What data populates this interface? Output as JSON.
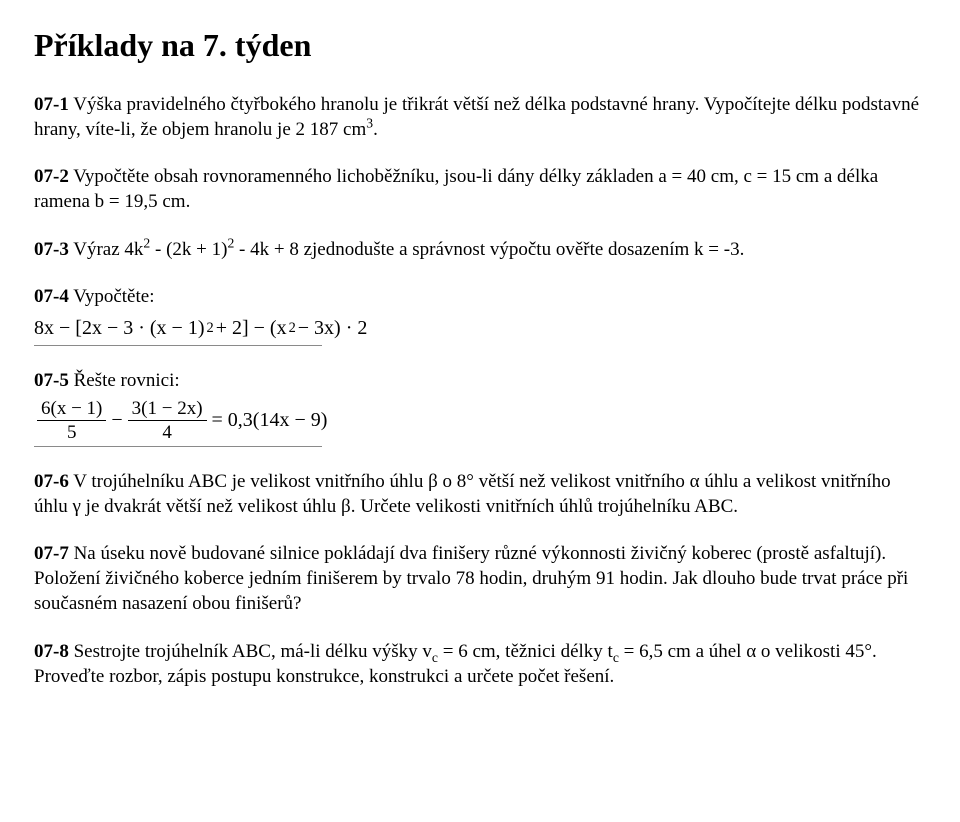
{
  "title": "Příklady na 7. týden",
  "problems": {
    "p1": {
      "label": "07-1",
      "text_before_sup": "  Výška pravidelného čtyřbokého hranolu je třikrát větší než délka podstavné hrany. Vypočítejte délku podstavné hrany, víte-li, že objem hranolu je 2 187 cm",
      "sup": "3",
      "text_after_sup": "."
    },
    "p2": {
      "label": "07-2",
      "text": "  Vypočtěte obsah rovnoramenného lichoběžníku, jsou-li dány délky základen a = 40 cm, c = 15 cm a délka ramena b = 19,5 cm."
    },
    "p3": {
      "label": "07-3",
      "pre": "  Výraz 4k",
      "sup1": "2",
      "mid1": " - (2k + 1)",
      "sup2": "2",
      "post": " - 4k + 8 zjednodušte a správnost výpočtu ověřte dosazením k = -3."
    },
    "p4": {
      "label": "07-4",
      "text": "  Vypočtěte:",
      "formula": {
        "part1": "8x − [2x − 3 · (x − 1)",
        "exp1": "2",
        "part2": " + 2] − (x",
        "exp2": "2",
        "part3": " − 3x) · 2"
      }
    },
    "p5": {
      "label": "07-5",
      "text": "  Řešte rovnici:",
      "formula": {
        "frac1_num": "6(x − 1)",
        "frac1_den": "5",
        "minus": " − ",
        "frac2_num": "3(1 − 2x)",
        "frac2_den": "4",
        "rhs": " = 0,3(14x − 9)"
      }
    },
    "p6": {
      "label": "07-6",
      "text": "  V trojúhelníku ABC je velikost vnitřního úhlu β o 8° větší než velikost vnitřního α úhlu a velikost vnitřního úhlu γ je dvakrát větší než velikost úhlu β. Určete velikosti vnitřních úhlů trojúhelníku ABC."
    },
    "p7": {
      "label": "07-7",
      "text": "  Na úseku nově budované silnice pokládají dva finišery různé výkonnosti živičný koberec (prostě asfaltují). Položení živičného koberce jedním finišerem by trvalo 78 hodin, druhým 91 hodin. Jak dlouho bude trvat práce při současném nasazení obou finišerů?"
    },
    "p8": {
      "label": "07-8",
      "pre": "  Sestrojte trojúhelník ABC, má-li délku výšky v",
      "sub1": "c",
      "mid": " = 6 cm, těžnici délky t",
      "sub2": "c",
      "post": " = 6,5 cm a úhel α o velikosti 45°. Proveďte rozbor, zápis postupu konstrukce, konstrukci a určete počet řešení."
    }
  }
}
